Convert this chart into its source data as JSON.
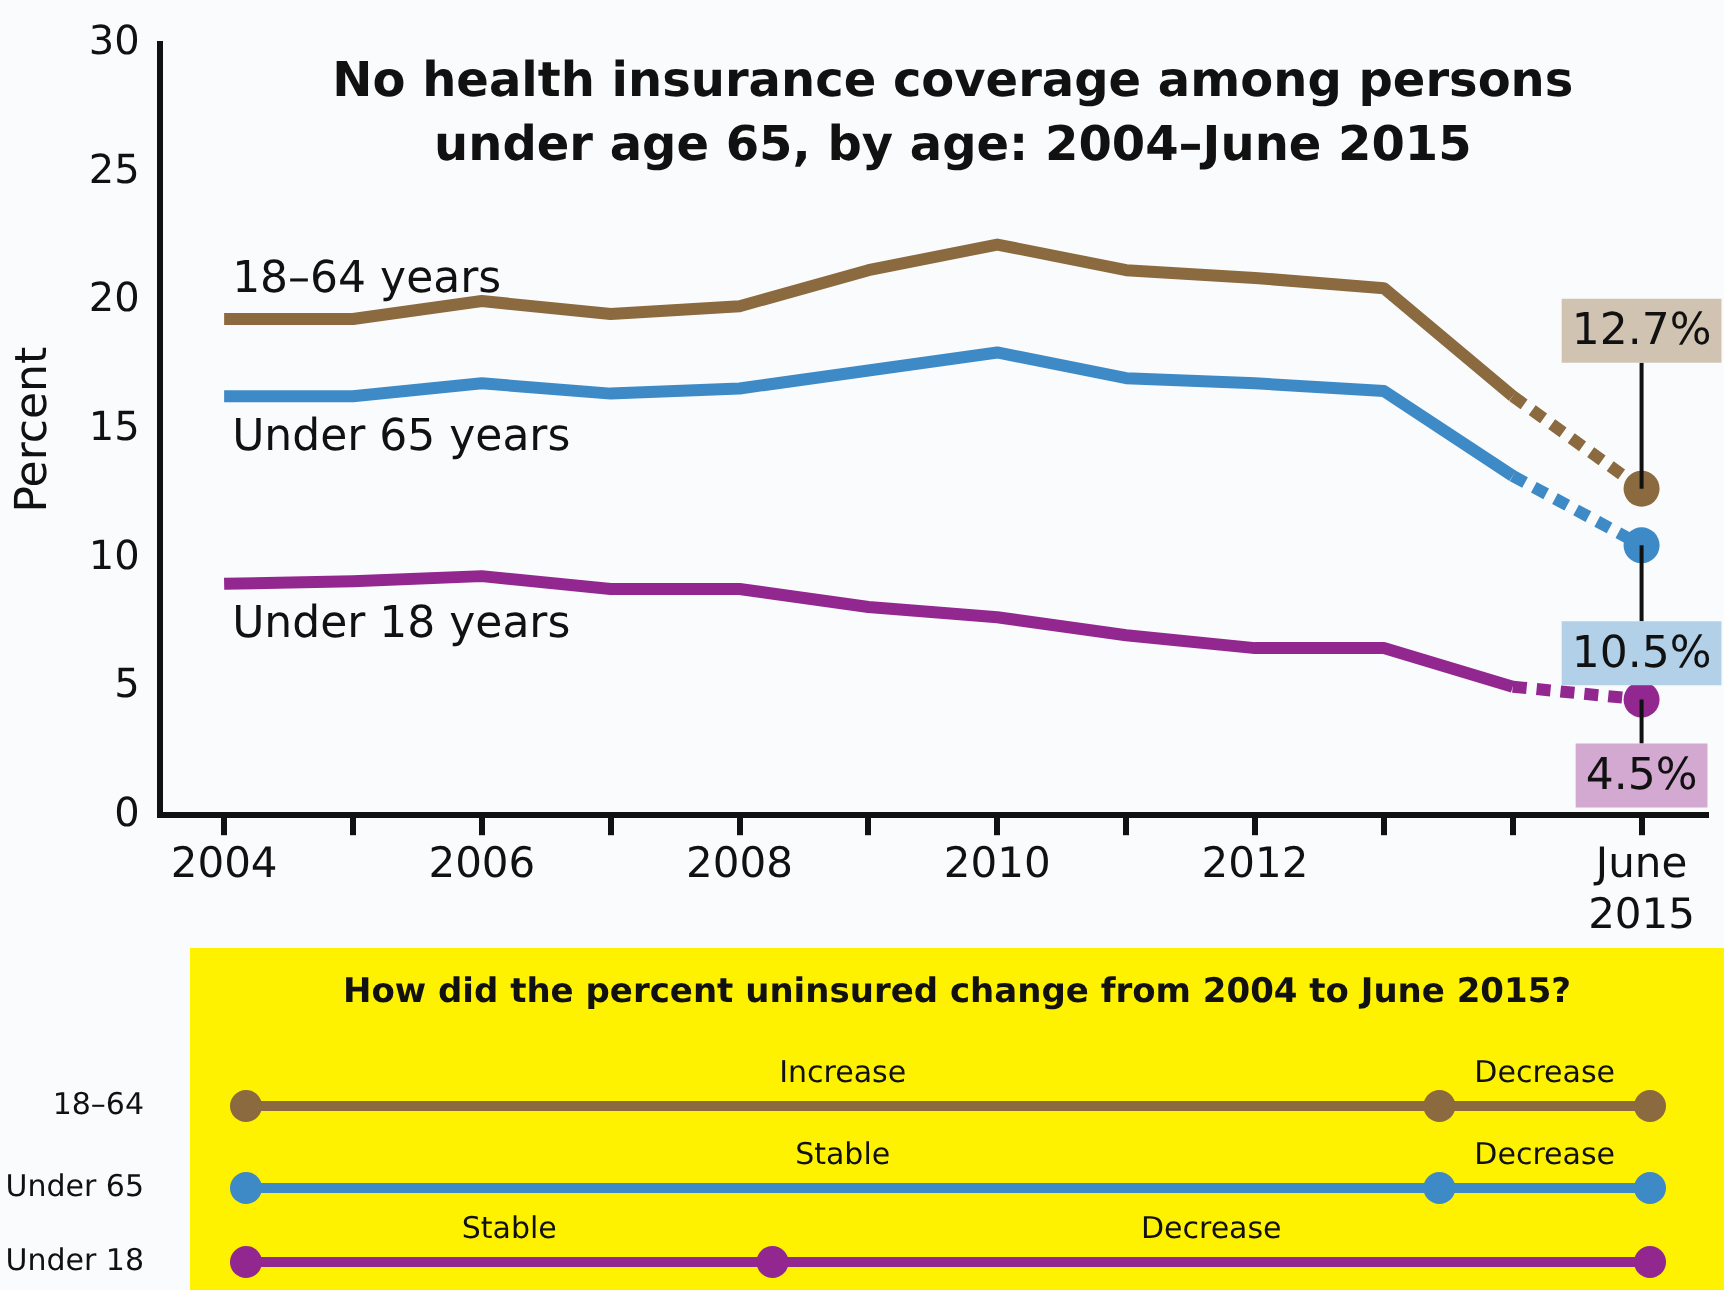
{
  "chart_data": [
    {
      "type": "line",
      "title": "No health insurance coverage among persons under age 65, by age: 2004–June 2015",
      "ylabel": "Percent",
      "categories": [
        "2004",
        null,
        "2006",
        null,
        "2008",
        null,
        "2010",
        null,
        "2012",
        null,
        null,
        "June 2015"
      ],
      "ylim": [
        0,
        30
      ],
      "yticks": [
        0,
        5,
        10,
        15,
        20,
        25,
        30
      ],
      "grid": false,
      "legend": false,
      "series": [
        {
          "name": "18–64 years",
          "color": "#8a6a3e",
          "line_style": "solid",
          "values": [
            19.3,
            19.3,
            20.0,
            19.5,
            19.8,
            21.2,
            22.2,
            21.2,
            20.9,
            20.5,
            16.3,
            null
          ]
        },
        {
          "name": "Under 65 years",
          "color": "#3e8ac6",
          "line_style": "solid",
          "values": [
            16.3,
            16.3,
            16.8,
            16.4,
            16.6,
            17.3,
            18.0,
            17.0,
            16.8,
            16.5,
            13.2,
            null
          ]
        },
        {
          "name": "Under 18 years",
          "color": "#92278f",
          "line_style": "solid",
          "values": [
            9.0,
            9.1,
            9.3,
            8.8,
            8.8,
            8.1,
            7.7,
            7.0,
            6.5,
            6.5,
            5.0,
            null
          ]
        },
        {
          "color": "#8a6a3e",
          "line_style": "dashed",
          "values": [
            null,
            null,
            null,
            null,
            null,
            null,
            null,
            null,
            null,
            null,
            16.3,
            12.7
          ]
        },
        {
          "color": "#3e8ac6",
          "line_style": "dashed",
          "values": [
            null,
            null,
            null,
            null,
            null,
            null,
            null,
            null,
            null,
            null,
            13.2,
            10.5
          ]
        },
        {
          "color": "#92278f",
          "line_style": "dashed",
          "values": [
            null,
            null,
            null,
            null,
            null,
            null,
            null,
            null,
            null,
            null,
            5.0,
            4.5
          ]
        },
        {
          "type": "scatter",
          "marker": "circle",
          "color": "#8a6a3e",
          "values": [
            null,
            null,
            null,
            null,
            null,
            null,
            null,
            null,
            null,
            null,
            null,
            12.7
          ],
          "value_labels": [
            null,
            null,
            null,
            null,
            null,
            null,
            null,
            null,
            null,
            null,
            null,
            "12.7%"
          ]
        },
        {
          "type": "scatter",
          "marker": "circle",
          "color": "#3e8ac6",
          "values": [
            null,
            null,
            null,
            null,
            null,
            null,
            null,
            null,
            null,
            null,
            null,
            10.5
          ],
          "value_labels": [
            null,
            null,
            null,
            null,
            null,
            null,
            null,
            null,
            null,
            null,
            null,
            "10.5%"
          ]
        },
        {
          "type": "scatter",
          "marker": "circle",
          "color": "#92278f",
          "values": [
            null,
            null,
            null,
            null,
            null,
            null,
            null,
            null,
            null,
            null,
            null,
            4.5
          ],
          "value_labels": [
            null,
            null,
            null,
            null,
            null,
            null,
            null,
            null,
            null,
            null,
            null,
            "4.5%"
          ]
        }
      ]
    },
    {
      "type": "other",
      "title": "How did the percent uninsured change from 2004 to June 2015?",
      "categories": [
        "18–64",
        "Under 65",
        "Under 18"
      ],
      "colors": [
        "#8a6a3e",
        "#3e8ac6",
        "#92278f"
      ],
      "annotations": [
        "Increase",
        "Decrease",
        "Stable",
        "Decrease",
        "Stable",
        "Decrease"
      ]
    }
  ]
}
